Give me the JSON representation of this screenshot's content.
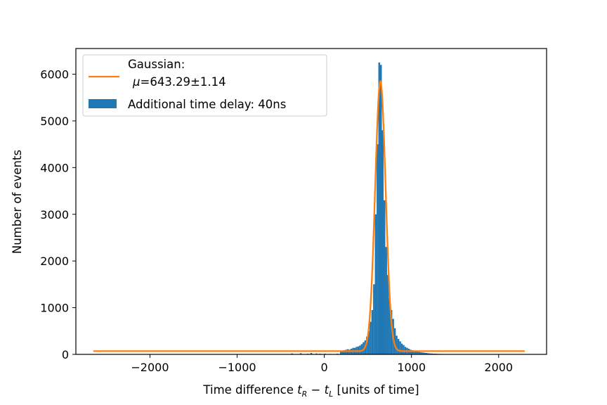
{
  "chart_data": {
    "type": "bar",
    "xlabel": "Time difference t_R − t_L [units of time]",
    "ylabel": "Number of events",
    "xlim": [
      -2850,
      2550
    ],
    "ylim": [
      0,
      6550
    ],
    "xticks": [
      -2000,
      -1000,
      0,
      1000,
      2000
    ],
    "xtick_labels": [
      "−2000",
      "−1000",
      "0",
      "1000",
      "2000"
    ],
    "yticks": [
      0,
      1000,
      2000,
      3000,
      4000,
      5000,
      6000
    ],
    "ytick_labels": [
      "0",
      "1000",
      "2000",
      "3000",
      "4000",
      "5000",
      "6000"
    ],
    "grid": false,
    "legend_position": "top-left",
    "histogram": {
      "name": "Additional time delay: 40ns",
      "color": "#1f77b4",
      "bin_width": 20,
      "bin_starts": [
        -380,
        -280,
        -200,
        -160,
        -100,
        -60,
        0,
        60,
        140,
        180,
        200,
        220,
        240,
        260,
        280,
        300,
        320,
        340,
        360,
        380,
        400,
        420,
        440,
        460,
        480,
        500,
        520,
        540,
        560,
        580,
        600,
        620,
        640,
        660,
        680,
        700,
        720,
        740,
        760,
        780,
        800,
        820,
        840,
        860,
        880,
        900,
        920,
        940,
        960,
        980,
        1000,
        1020,
        1040,
        1060,
        1080,
        1100,
        1120,
        1140,
        1160,
        1180,
        1200,
        1220,
        1240,
        1260,
        1280,
        1300,
        1320,
        1340,
        1360,
        1380,
        1400,
        1420,
        1440,
        1460,
        1480,
        1500,
        1520,
        1540,
        1560,
        1580
      ],
      "counts": [
        20,
        25,
        15,
        30,
        20,
        15,
        15,
        10,
        15,
        80,
        70,
        90,
        100,
        110,
        100,
        120,
        140,
        140,
        160,
        170,
        190,
        220,
        260,
        300,
        380,
        500,
        700,
        950,
        1500,
        3000,
        4500,
        6250,
        6200,
        4800,
        3300,
        2300,
        1700,
        1200,
        950,
        760,
        560,
        400,
        330,
        280,
        230,
        200,
        160,
        140,
        120,
        100,
        90,
        80,
        70,
        60,
        50,
        45,
        40,
        35,
        30,
        25,
        20,
        20,
        15,
        15,
        12,
        10,
        10,
        8,
        8,
        6,
        6,
        5,
        5,
        4,
        4,
        3,
        3,
        2,
        2,
        2
      ]
    },
    "fit": {
      "name": "Gaussian:\n μ=643.29±1.14",
      "color": "#ff7f0e",
      "mu": 643.29,
      "sigma": 60,
      "amplitude": 5780,
      "offset": 70,
      "x_range": [
        -2650,
        2300
      ]
    }
  },
  "legend": {
    "fit_line1": "Gaussian:",
    "fit_line2": "μ=643.29±1.14",
    "hist_label": "Additional time delay: 40ns"
  },
  "axes": {
    "xlabel_prefix": "Time difference ",
    "xlabel_suffix": " [units of time]",
    "ylabel": "Number of events"
  }
}
